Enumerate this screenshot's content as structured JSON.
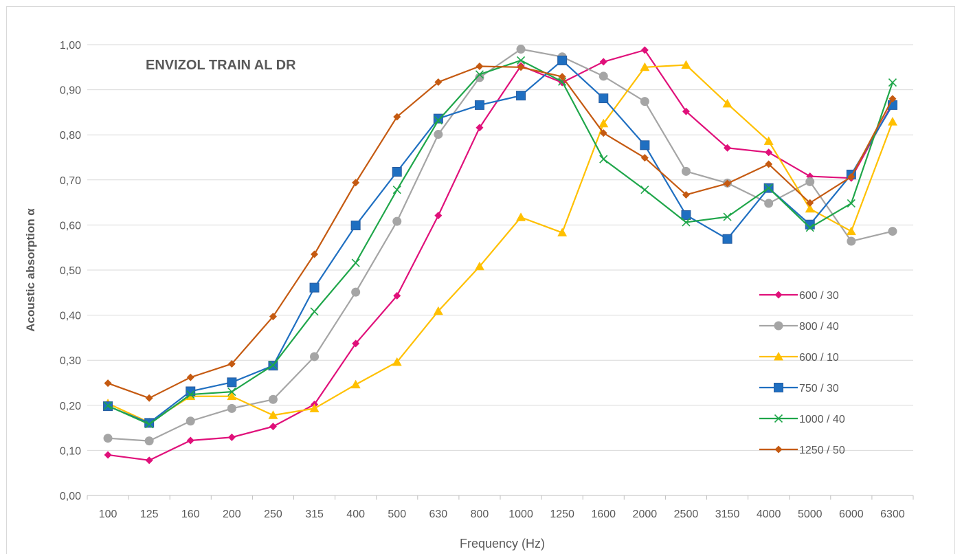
{
  "chart_data": {
    "type": "line",
    "title": "ENVIZOL TRAIN AL DR",
    "title_color": "#e0107a",
    "xlabel": "Frequency (Hz)",
    "ylabel": "Acoustic absorption  α",
    "categories": [
      "100",
      "125",
      "160",
      "200",
      "250",
      "315",
      "400",
      "500",
      "630",
      "800",
      "1000",
      "1250",
      "1600",
      "2000",
      "2500",
      "3150",
      "4000",
      "5000",
      "6000",
      "6300"
    ],
    "ylim": [
      0,
      1
    ],
    "yticks": [
      "0,00",
      "0,10",
      "0,20",
      "0,30",
      "0,40",
      "0,50",
      "0,60",
      "0,70",
      "0,80",
      "0,90",
      "1,00"
    ],
    "grid": true,
    "legend_position": "right",
    "series": [
      {
        "name": "600 / 30",
        "color": "#e0107a",
        "marker": "diamond",
        "values": [
          0.09,
          0.078,
          0.122,
          0.129,
          0.153,
          0.202,
          0.337,
          0.443,
          0.621,
          0.816,
          0.953,
          0.916,
          0.962,
          0.988,
          0.852,
          0.771,
          0.761,
          0.708,
          0.704,
          0.87
        ]
      },
      {
        "name": "800 / 40",
        "color": "#a5a5a5",
        "marker": "circle",
        "values": [
          0.127,
          0.121,
          0.165,
          0.193,
          0.213,
          0.308,
          0.451,
          0.608,
          0.801,
          0.927,
          0.99,
          0.973,
          0.93,
          0.874,
          0.719,
          0.693,
          0.648,
          0.696,
          0.564,
          0.586
        ]
      },
      {
        "name": "600 / 10",
        "color": "#ffc000",
        "marker": "triangle",
        "values": [
          0.204,
          0.162,
          0.22,
          0.22,
          0.178,
          0.193,
          0.246,
          0.296,
          0.409,
          0.508,
          0.617,
          0.583,
          0.825,
          0.95,
          0.955,
          0.869,
          0.786,
          0.636,
          0.586,
          0.829
        ]
      },
      {
        "name": "750 / 30",
        "color": "#1f6fc1",
        "marker": "square",
        "values": [
          0.198,
          0.161,
          0.231,
          0.251,
          0.288,
          0.461,
          0.599,
          0.718,
          0.836,
          0.866,
          0.887,
          0.965,
          0.881,
          0.777,
          0.622,
          0.569,
          0.682,
          0.601,
          0.712,
          0.866
        ]
      },
      {
        "name": "1000 / 40",
        "color": "#1fa64a",
        "marker": "x",
        "values": [
          0.199,
          0.158,
          0.224,
          0.23,
          0.289,
          0.408,
          0.516,
          0.678,
          0.832,
          0.934,
          0.965,
          0.918,
          0.746,
          0.678,
          0.606,
          0.618,
          0.682,
          0.594,
          0.648,
          0.916
        ]
      },
      {
        "name": "1250 / 50",
        "color": "#c55a11",
        "marker": "diamond",
        "values": [
          0.249,
          0.216,
          0.262,
          0.292,
          0.397,
          0.535,
          0.694,
          0.84,
          0.917,
          0.952,
          0.95,
          0.929,
          0.804,
          0.749,
          0.667,
          0.692,
          0.735,
          0.649,
          0.707,
          0.88
        ]
      }
    ]
  }
}
